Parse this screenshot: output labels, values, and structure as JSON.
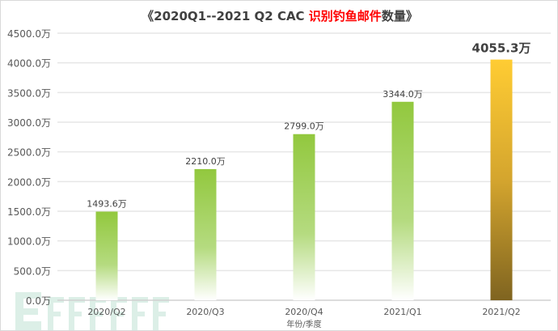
{
  "chart_data": {
    "type": "bar",
    "title_prefix": "《2020Q1--2021 Q2 CAC ",
    "title_highlight": "识别钓鱼邮件",
    "title_suffix": "数量》",
    "xlabel": "年份/季度",
    "ylabel": "",
    "categories": [
      "2020/Q2",
      "2020/Q3",
      "2020/Q4",
      "2021/Q1",
      "2021/Q2"
    ],
    "values": [
      1493.6,
      2210.0,
      2799.0,
      3344.0,
      4055.3
    ],
    "data_labels": [
      "1493.6万",
      "2210.0万",
      "2799.0万",
      "3344.0万",
      "4055.3万"
    ],
    "ylim": [
      0,
      4500
    ],
    "yticks": [
      "0.0万",
      "500.0万",
      "1000.0万",
      "1500.0万",
      "2000.0万",
      "2500.0万",
      "3000.0万",
      "3500.0万",
      "4000.0万",
      "4500.0万"
    ],
    "grid": true,
    "colors": {
      "green": "#92c83e",
      "gold_top": "#ffcc33",
      "gold_bottom": "#7f6420",
      "title_highlight": "#ff0000"
    }
  },
  "watermark": "FREEBUF"
}
